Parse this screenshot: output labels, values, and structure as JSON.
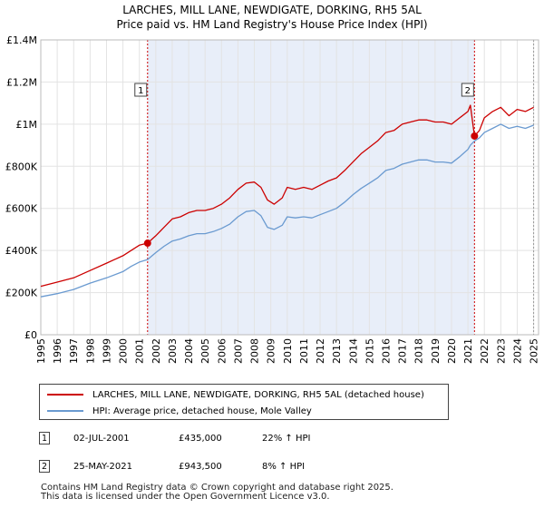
{
  "header": {
    "title_line1": "LARCHES, MILL LANE, NEWDIGATE, DORKING, RH5 5AL",
    "title_line2": "Price paid vs. HM Land Registry's House Price Index (HPI)"
  },
  "colors": {
    "property": "#cc0000",
    "hpi": "#6a9ad0",
    "shade": "#e8eef9",
    "grid": "#e3e3e3"
  },
  "chart_data": {
    "type": "line",
    "title": "Price paid vs. HM Land Registry's House Price Index (HPI)",
    "xlabel": "",
    "ylabel": "",
    "xlim": [
      1995,
      2025.3
    ],
    "ylim": [
      0,
      1400000
    ],
    "y_ticks": [
      {
        "value": 0,
        "label": "£0"
      },
      {
        "value": 200000,
        "label": "£200K"
      },
      {
        "value": 400000,
        "label": "£400K"
      },
      {
        "value": 600000,
        "label": "£600K"
      },
      {
        "value": 800000,
        "label": "£800K"
      },
      {
        "value": 1000000,
        "label": "£1M"
      },
      {
        "value": 1200000,
        "label": "£1.2M"
      },
      {
        "value": 1400000,
        "label": "£1.4M"
      }
    ],
    "x_ticks": [
      "1995",
      "1996",
      "1997",
      "1998",
      "1999",
      "2000",
      "2001",
      "2002",
      "2003",
      "2004",
      "2005",
      "2006",
      "2007",
      "2008",
      "2009",
      "2010",
      "2011",
      "2012",
      "2013",
      "2014",
      "2015",
      "2016",
      "2017",
      "2018",
      "2019",
      "2020",
      "2021",
      "2022",
      "2023",
      "2024",
      "2025"
    ],
    "shaded_region": [
      2001.5,
      2021.4
    ],
    "series": [
      {
        "name": "LARCHES, MILL LANE, NEWDIGATE, DORKING, RH5 5AL (detached house)",
        "x": [
          1995,
          1996,
          1997,
          1998,
          1999,
          2000,
          2000.5,
          2001,
          2001.5,
          2002,
          2002.5,
          2003,
          2003.5,
          2004,
          2004.5,
          2005,
          2005.5,
          2006,
          2006.5,
          2007,
          2007.5,
          2008,
          2008.4,
          2008.8,
          2009.2,
          2009.7,
          2010,
          2010.5,
          2011,
          2011.5,
          2012,
          2012.5,
          2013,
          2013.5,
          2014,
          2014.5,
          2015,
          2015.5,
          2016,
          2016.5,
          2017,
          2017.5,
          2018,
          2018.5,
          2019,
          2019.5,
          2020,
          2020.5,
          2021,
          2021.15,
          2021.4,
          2021.7,
          2022,
          2022.5,
          2023,
          2023.5,
          2024,
          2024.5,
          2025
        ],
        "values": [
          230000,
          250000,
          270000,
          305000,
          340000,
          375000,
          400000,
          425000,
          435000,
          470000,
          510000,
          550000,
          560000,
          580000,
          590000,
          590000,
          600000,
          620000,
          650000,
          690000,
          720000,
          725000,
          700000,
          640000,
          620000,
          650000,
          700000,
          690000,
          700000,
          690000,
          710000,
          730000,
          745000,
          780000,
          820000,
          860000,
          890000,
          920000,
          960000,
          970000,
          1000000,
          1010000,
          1020000,
          1020000,
          1010000,
          1010000,
          1000000,
          1030000,
          1060000,
          1090000,
          943500,
          970000,
          1030000,
          1060000,
          1080000,
          1040000,
          1070000,
          1060000,
          1080000
        ]
      },
      {
        "name": "HPI: Average price, detached house, Mole Valley",
        "x": [
          1995,
          1996,
          1997,
          1998,
          1999,
          2000,
          2000.5,
          2001,
          2001.5,
          2002,
          2002.5,
          2003,
          2003.5,
          2004,
          2004.5,
          2005,
          2005.5,
          2006,
          2006.5,
          2007,
          2007.5,
          2008,
          2008.4,
          2008.8,
          2009.2,
          2009.7,
          2010,
          2010.5,
          2011,
          2011.5,
          2012,
          2012.5,
          2013,
          2013.5,
          2014,
          2014.5,
          2015,
          2015.5,
          2016,
          2016.5,
          2017,
          2017.5,
          2018,
          2018.5,
          2019,
          2019.5,
          2020,
          2020.5,
          2021,
          2021.15,
          2021.4,
          2021.7,
          2022,
          2022.5,
          2023,
          2023.5,
          2024,
          2024.5,
          2025
        ],
        "values": [
          180000,
          195000,
          215000,
          245000,
          270000,
          300000,
          325000,
          345000,
          357000,
          390000,
          420000,
          445000,
          455000,
          470000,
          480000,
          480000,
          490000,
          505000,
          525000,
          560000,
          585000,
          590000,
          565000,
          510000,
          500000,
          520000,
          560000,
          555000,
          560000,
          555000,
          570000,
          585000,
          600000,
          630000,
          665000,
          695000,
          720000,
          745000,
          780000,
          790000,
          810000,
          820000,
          830000,
          830000,
          820000,
          820000,
          815000,
          845000,
          880000,
          900000,
          920000,
          935000,
          960000,
          980000,
          1000000,
          980000,
          990000,
          980000,
          995000
        ]
      }
    ],
    "sales": [
      {
        "id": "1",
        "x": 2001.5,
        "value": 435000
      },
      {
        "id": "2",
        "x": 2021.4,
        "value": 943500
      }
    ]
  },
  "legend": {
    "property_label": "LARCHES, MILL LANE, NEWDIGATE, DORKING, RH5 5AL (detached house)",
    "hpi_label": "HPI: Average price, detached house, Mole Valley"
  },
  "sales_table": [
    {
      "num": "1",
      "date": "02-JUL-2001",
      "price": "£435,000",
      "hpi": "22% ↑ HPI"
    },
    {
      "num": "2",
      "date": "25-MAY-2021",
      "price": "£943,500",
      "hpi": "8% ↑ HPI"
    }
  ],
  "footer": {
    "line1": "Contains HM Land Registry data © Crown copyright and database right 2025.",
    "line2": "This data is licensed under the Open Government Licence v3.0."
  }
}
